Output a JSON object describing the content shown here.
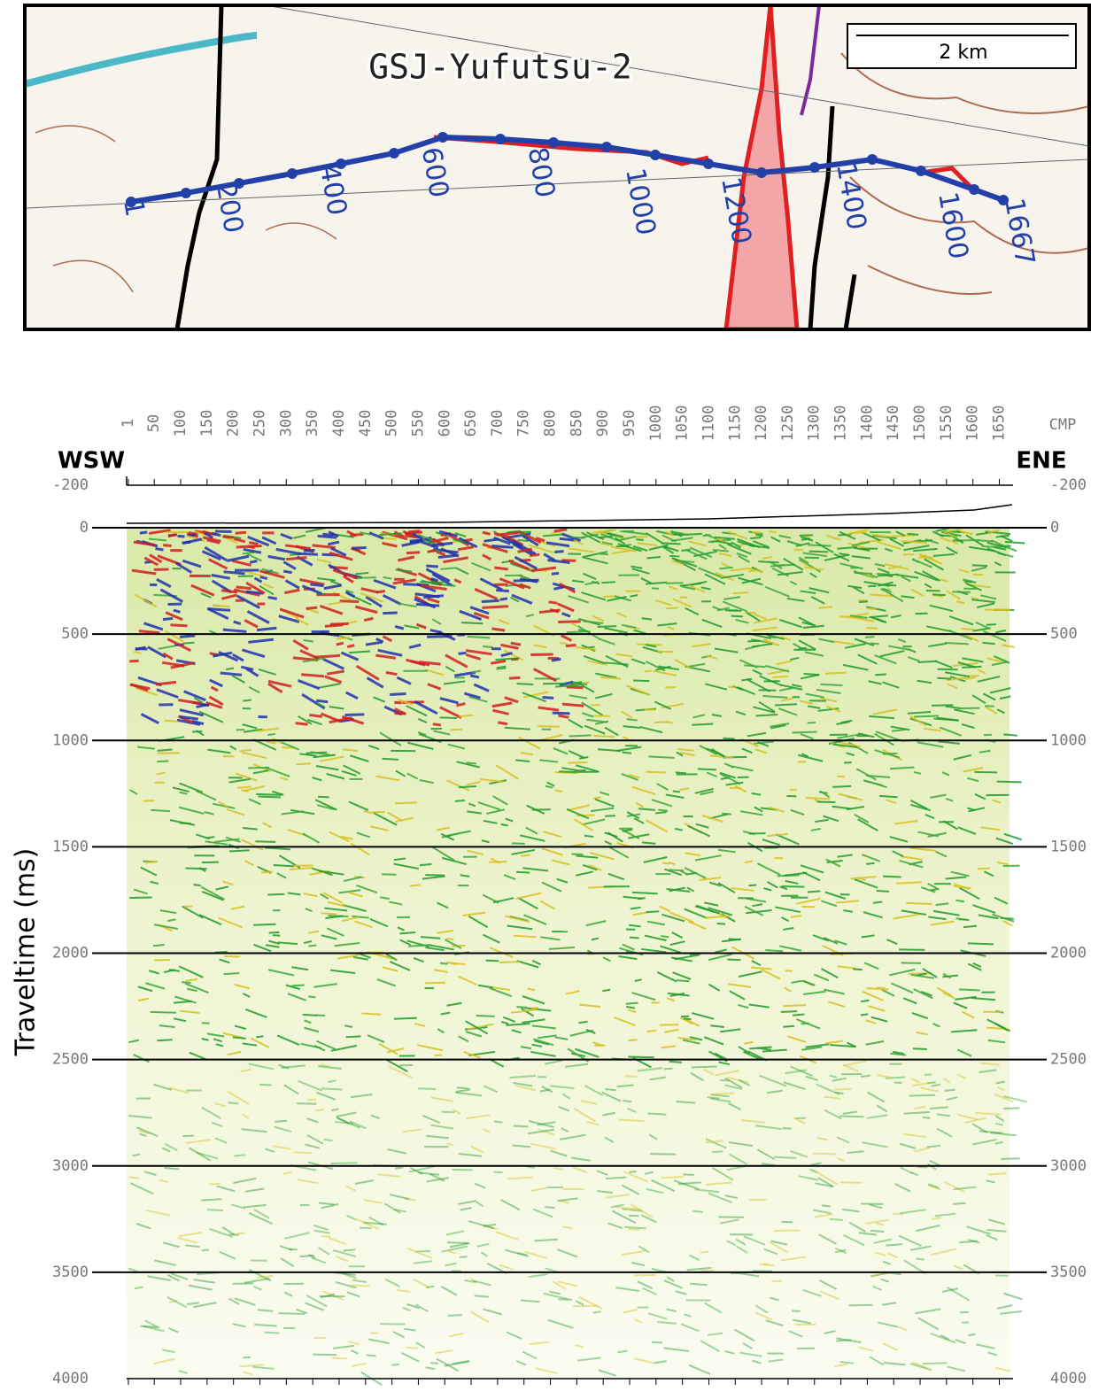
{
  "map": {
    "title": "GSJ-Yufutsu-2",
    "scale_label": "2 km",
    "cmp_labels": [
      "1",
      "200",
      "400",
      "600",
      "800",
      "1000",
      "1200",
      "1400",
      "1600",
      "1667"
    ]
  },
  "chart_data": {
    "type": "seismic",
    "x_label": "CMP",
    "y_label": "Traveltime (ms)",
    "left_label": "WSW",
    "right_label": "ENE",
    "xlim": [
      1,
      1676
    ],
    "xticks": [
      1,
      50,
      100,
      150,
      200,
      250,
      300,
      350,
      400,
      450,
      500,
      550,
      600,
      650,
      700,
      750,
      800,
      850,
      900,
      950,
      1000,
      1050,
      1100,
      1150,
      1200,
      1250,
      1300,
      1350,
      1400,
      1450,
      1500,
      1550,
      1600,
      1650
    ],
    "ylim": [
      -200,
      4000
    ],
    "yticks": [
      -200,
      0,
      500,
      1000,
      1500,
      2000,
      2500,
      3000,
      3500,
      4000
    ],
    "grid": true
  }
}
